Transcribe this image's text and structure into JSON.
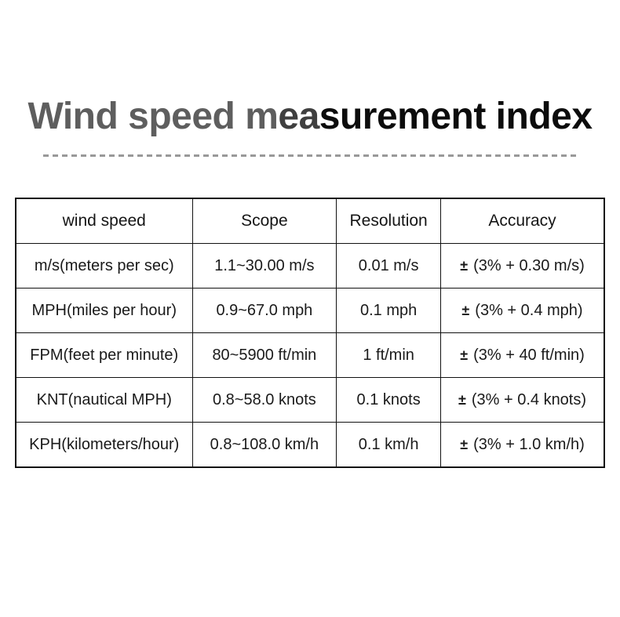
{
  "title": {
    "segments": [
      {
        "text": "Wind speed m",
        "color": "#5e5e5e"
      },
      {
        "text": "ea",
        "color": "#3f3f3f"
      },
      {
        "text": "surement index",
        "color": "#0c0c0c"
      }
    ],
    "full_text": "Wind speed measurement index"
  },
  "divider": {
    "style": "dashed",
    "color": "#999999"
  },
  "table": {
    "columns": [
      "wind speed",
      "Scope",
      "Resolution",
      "Accuracy"
    ],
    "rows": [
      {
        "wind_speed": "m/s(meters per sec)",
        "scope": "1.1~30.00 m/s",
        "resolution": "0.01 m/s",
        "accuracy_pm": "±",
        "accuracy_range": "(3% + 0.30 m/s)"
      },
      {
        "wind_speed": "MPH(miles per hour)",
        "scope": "0.9~67.0 mph",
        "resolution": "0.1 mph",
        "accuracy_pm": "±",
        "accuracy_range": "(3% + 0.4 mph)"
      },
      {
        "wind_speed": "FPM(feet per minute)",
        "scope": "80~5900 ft/min",
        "resolution": "1 ft/min",
        "accuracy_pm": "±",
        "accuracy_range": "(3% + 40 ft/min)"
      },
      {
        "wind_speed": "KNT(nautical MPH)",
        "scope": "0.8~58.0 knots",
        "resolution": "0.1 knots",
        "accuracy_pm": "±",
        "accuracy_range": "(3% + 0.4 knots)"
      },
      {
        "wind_speed": "KPH(kilometers/hour)",
        "scope": "0.8~108.0 km/h",
        "resolution": "0.1 km/h",
        "accuracy_pm": "±",
        "accuracy_range": "(3% + 1.0 km/h)"
      }
    ]
  },
  "colors": {
    "background": "#ffffff",
    "table_border": "#111111",
    "table_text": "#1a1a1a",
    "title_gray": "#5e5e5e",
    "title_black": "#0c0c0c",
    "divider_gray": "#999999"
  }
}
